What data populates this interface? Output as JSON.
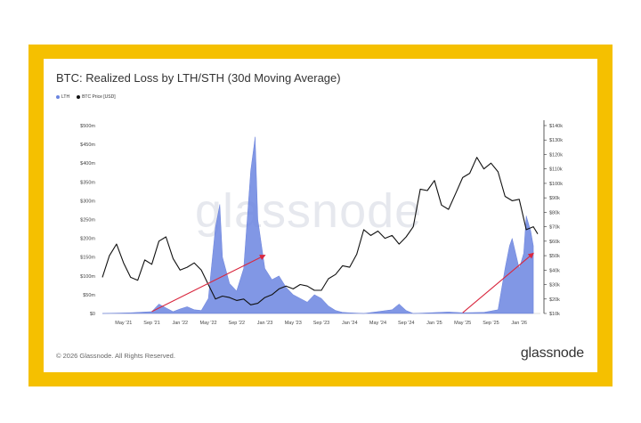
{
  "chart_data": {
    "type": "area",
    "title": "BTC: Realized Loss by LTH/STH (30d Moving Average)",
    "legend_placement": "top-left",
    "x_ticks": [
      "May '21",
      "Sep '21",
      "Jan '22",
      "May '22",
      "Sep '22",
      "Jan '23",
      "May '23",
      "Sep '23",
      "Jan '24",
      "May '24",
      "Sep '24",
      "Jan '25",
      "May '25",
      "Sep '25",
      "Jan '26"
    ],
    "y_left_ticks": [
      "$0",
      "$50m",
      "$100m",
      "$150m",
      "$200m",
      "$250m",
      "$300m",
      "$350m",
      "$400m",
      "$450m",
      "$500m"
    ],
    "y_right_ticks": [
      "$10k",
      "$20k",
      "$30k",
      "$40k",
      "$50k",
      "$60k",
      "$70k",
      "$80k",
      "$90k",
      "$100k",
      "$110k",
      "$120k",
      "$130k",
      "$140k"
    ],
    "x_range": [
      "2021-02",
      "2026-04"
    ],
    "y_left_range": [
      0,
      500
    ],
    "y_right_range": [
      10,
      140
    ],
    "series": [
      {
        "name": "LTH",
        "color": "#6b85e0",
        "kind": "area",
        "axis": "left",
        "unit": "$m",
        "points": [
          [
            "2021-02",
            0
          ],
          [
            "2021-06",
            2
          ],
          [
            "2021-09",
            5
          ],
          [
            "2021-10",
            25
          ],
          [
            "2021-11",
            15
          ],
          [
            "2021-12",
            5
          ],
          [
            "2022-01",
            12
          ],
          [
            "2022-02",
            18
          ],
          [
            "2022-03",
            10
          ],
          [
            "2022-04",
            8
          ],
          [
            "2022-05",
            40
          ],
          [
            "2022-06",
            230
          ],
          [
            "2022-06-20",
            290
          ],
          [
            "2022-07",
            150
          ],
          [
            "2022-08",
            80
          ],
          [
            "2022-09",
            60
          ],
          [
            "2022-10",
            120
          ],
          [
            "2022-11",
            380
          ],
          [
            "2022-11-20",
            470
          ],
          [
            "2022-12",
            250
          ],
          [
            "2023-01",
            120
          ],
          [
            "2023-02",
            90
          ],
          [
            "2023-03",
            100
          ],
          [
            "2023-04",
            70
          ],
          [
            "2023-05",
            50
          ],
          [
            "2023-06",
            40
          ],
          [
            "2023-07",
            30
          ],
          [
            "2023-08",
            50
          ],
          [
            "2023-09",
            40
          ],
          [
            "2023-10",
            20
          ],
          [
            "2023-11",
            8
          ],
          [
            "2023-12",
            3
          ],
          [
            "2024-01",
            2
          ],
          [
            "2024-03",
            0
          ],
          [
            "2024-07",
            10
          ],
          [
            "2024-08",
            25
          ],
          [
            "2024-09",
            8
          ],
          [
            "2024-10",
            0
          ],
          [
            "2025-03",
            4
          ],
          [
            "2025-05",
            2
          ],
          [
            "2025-08",
            3
          ],
          [
            "2025-10",
            10
          ],
          [
            "2025-11",
            120
          ],
          [
            "2025-11-20",
            180
          ],
          [
            "2025-12",
            200
          ],
          [
            "2026-01",
            120
          ],
          [
            "2026-01-20",
            160
          ],
          [
            "2026-02",
            260
          ],
          [
            "2026-02-20",
            220
          ],
          [
            "2026-03",
            180
          ]
        ]
      },
      {
        "name": "BTC Price [USD]",
        "color": "#111111",
        "kind": "line",
        "axis": "right",
        "unit": "$k",
        "points": [
          [
            "2021-02",
            35
          ],
          [
            "2021-03",
            50
          ],
          [
            "2021-04",
            58
          ],
          [
            "2021-05",
            45
          ],
          [
            "2021-06",
            35
          ],
          [
            "2021-07",
            33
          ],
          [
            "2021-08",
            47
          ],
          [
            "2021-09",
            44
          ],
          [
            "2021-10",
            60
          ],
          [
            "2021-11",
            63
          ],
          [
            "2021-12",
            48
          ],
          [
            "2022-01",
            40
          ],
          [
            "2022-02",
            42
          ],
          [
            "2022-03",
            45
          ],
          [
            "2022-04",
            40
          ],
          [
            "2022-05",
            30
          ],
          [
            "2022-06",
            20
          ],
          [
            "2022-07",
            22
          ],
          [
            "2022-08",
            21
          ],
          [
            "2022-09",
            19
          ],
          [
            "2022-10",
            20
          ],
          [
            "2022-11",
            16
          ],
          [
            "2022-12",
            17
          ],
          [
            "2023-01",
            21
          ],
          [
            "2023-02",
            23
          ],
          [
            "2023-03",
            27
          ],
          [
            "2023-04",
            29
          ],
          [
            "2023-05",
            27
          ],
          [
            "2023-06",
            30
          ],
          [
            "2023-07",
            29
          ],
          [
            "2023-08",
            26
          ],
          [
            "2023-09",
            26
          ],
          [
            "2023-10",
            34
          ],
          [
            "2023-11",
            37
          ],
          [
            "2023-12",
            43
          ],
          [
            "2024-01",
            42
          ],
          [
            "2024-02",
            51
          ],
          [
            "2024-03",
            68
          ],
          [
            "2024-04",
            64
          ],
          [
            "2024-05",
            67
          ],
          [
            "2024-06",
            62
          ],
          [
            "2024-07",
            64
          ],
          [
            "2024-08",
            58
          ],
          [
            "2024-09",
            63
          ],
          [
            "2024-10",
            70
          ],
          [
            "2024-11",
            96
          ],
          [
            "2024-12",
            95
          ],
          [
            "2025-01",
            102
          ],
          [
            "2025-02",
            85
          ],
          [
            "2025-03",
            82
          ],
          [
            "2025-04",
            93
          ],
          [
            "2025-05",
            104
          ],
          [
            "2025-06",
            107
          ],
          [
            "2025-07",
            118
          ],
          [
            "2025-08",
            110
          ],
          [
            "2025-09",
            114
          ],
          [
            "2025-10",
            108
          ],
          [
            "2025-11",
            91
          ],
          [
            "2025-12",
            88
          ],
          [
            "2026-01",
            89
          ],
          [
            "2026-02",
            68
          ],
          [
            "2026-03",
            70
          ],
          [
            "2026-03-20",
            65
          ]
        ]
      }
    ],
    "annotations": [
      {
        "type": "arrow",
        "color": "#d9283f",
        "from": [
          "2021-09",
          5
        ],
        "to": [
          "2023-01",
          155
        ],
        "axis": "left"
      },
      {
        "type": "arrow",
        "color": "#d9283f",
        "from": [
          "2025-05",
          2
        ],
        "to": [
          "2026-03",
          160
        ],
        "axis": "left"
      }
    ],
    "grid": false
  },
  "watermark": "glassnode",
  "footer": "© 2026 Glassnode. All Rights Reserved.",
  "brand": "glassnode"
}
